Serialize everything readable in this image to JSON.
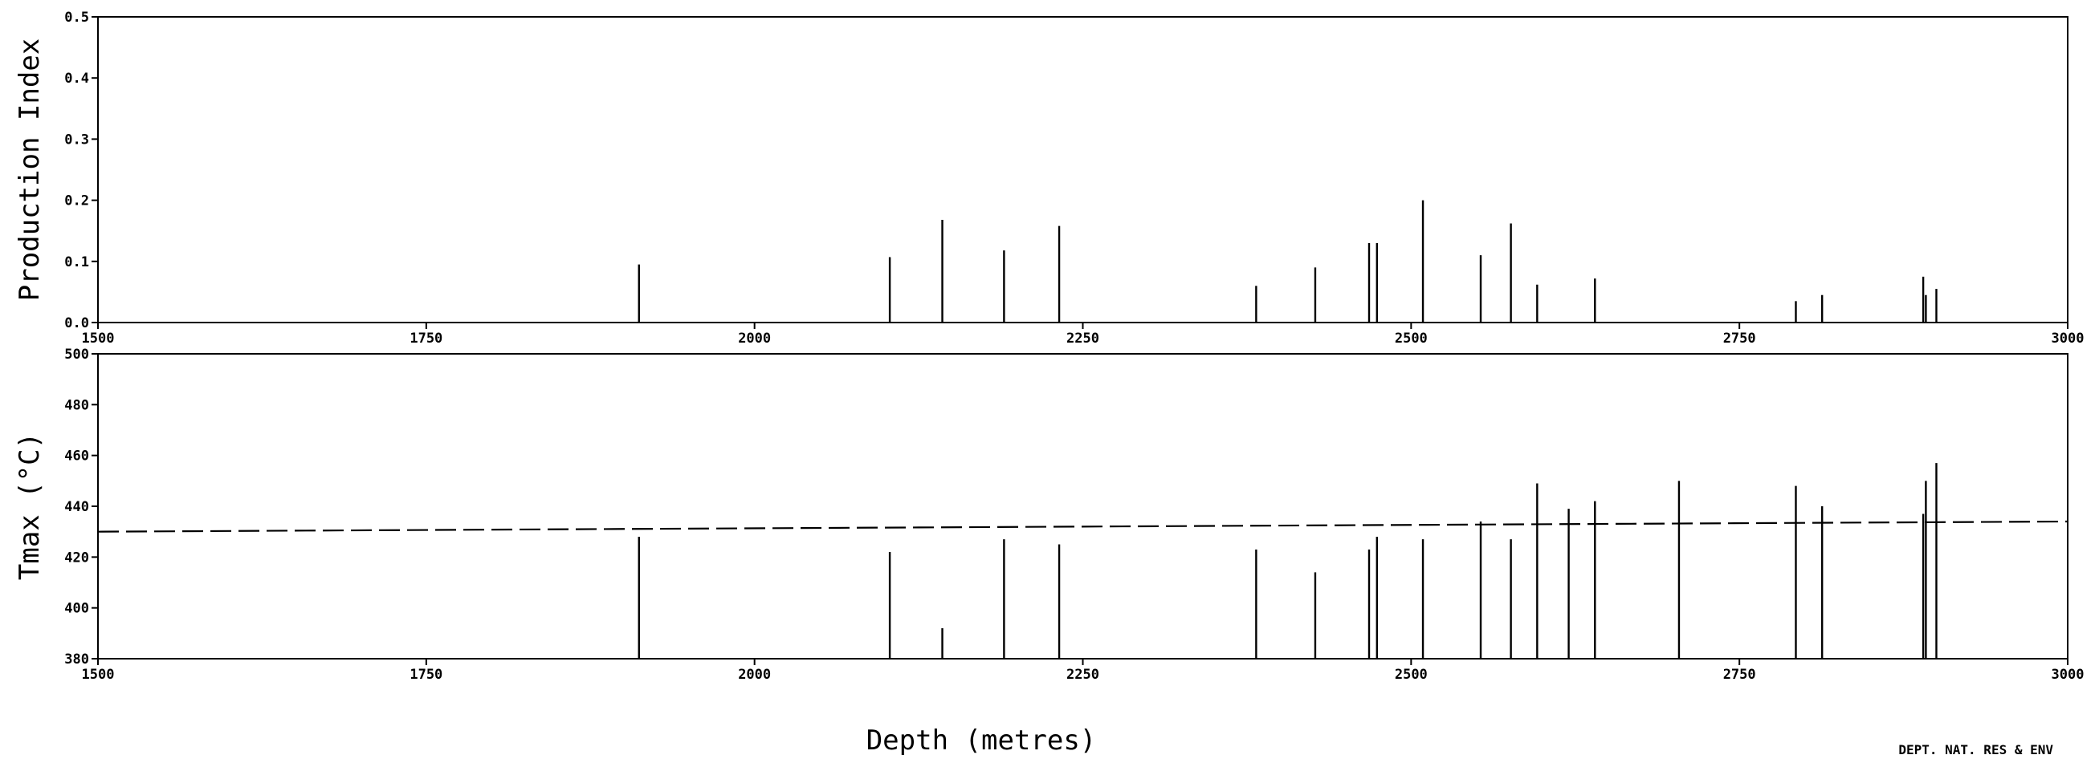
{
  "footer": {
    "text": "DEPT. NAT. RES & ENV"
  },
  "chart_data": [
    {
      "type": "bar",
      "ylabel": "Production Index",
      "xlabel": "",
      "xlim": [
        1500,
        3000
      ],
      "ylim": [
        0,
        0.5
      ],
      "x_ticks": [
        "1500",
        "1750",
        "2000",
        "2250",
        "2500",
        "2750",
        "3000"
      ],
      "y_ticks": [
        "0.0",
        "0.1",
        "0.2",
        "0.3",
        "0.4",
        "0.5"
      ],
      "grid": false,
      "series": [
        {
          "x": [
            1912,
            2103,
            2143,
            2190,
            2232,
            2382,
            2427,
            2468,
            2474,
            2509,
            2553,
            2576,
            2596,
            2640,
            2793,
            2813,
            2890,
            2892,
            2900
          ],
          "values": [
            0.095,
            0.107,
            0.168,
            0.118,
            0.158,
            0.06,
            0.09,
            0.13,
            0.13,
            0.2,
            0.11,
            0.162,
            0.062,
            0.072,
            0.035,
            0.045,
            0.075,
            0.045,
            0.055
          ]
        }
      ]
    },
    {
      "type": "bar",
      "ylabel": "Tmax (°C)",
      "xlabel": "Depth (metres)",
      "xlim": [
        1500,
        3000
      ],
      "ylim": [
        380,
        500
      ],
      "x_ticks": [
        "1500",
        "1750",
        "2000",
        "2250",
        "2500",
        "2750",
        "3000"
      ],
      "y_ticks": [
        "380",
        "400",
        "420",
        "440",
        "460",
        "480",
        "500"
      ],
      "grid": false,
      "baseline": 380,
      "series": [
        {
          "x": [
            1912,
            2103,
            2143,
            2190,
            2232,
            2382,
            2427,
            2468,
            2474,
            2509,
            2553,
            2576,
            2596,
            2620,
            2640,
            2704,
            2793,
            2813,
            2890,
            2892,
            2900
          ],
          "values": [
            428,
            422,
            392,
            427,
            425,
            423,
            414,
            423,
            428,
            427,
            434,
            427,
            449,
            439,
            442,
            450,
            448,
            440,
            437,
            450,
            457
          ]
        }
      ],
      "reference_line": {
        "x": [
          1500,
          3000
        ],
        "y": [
          430,
          434
        ],
        "style": "dashed"
      }
    }
  ]
}
